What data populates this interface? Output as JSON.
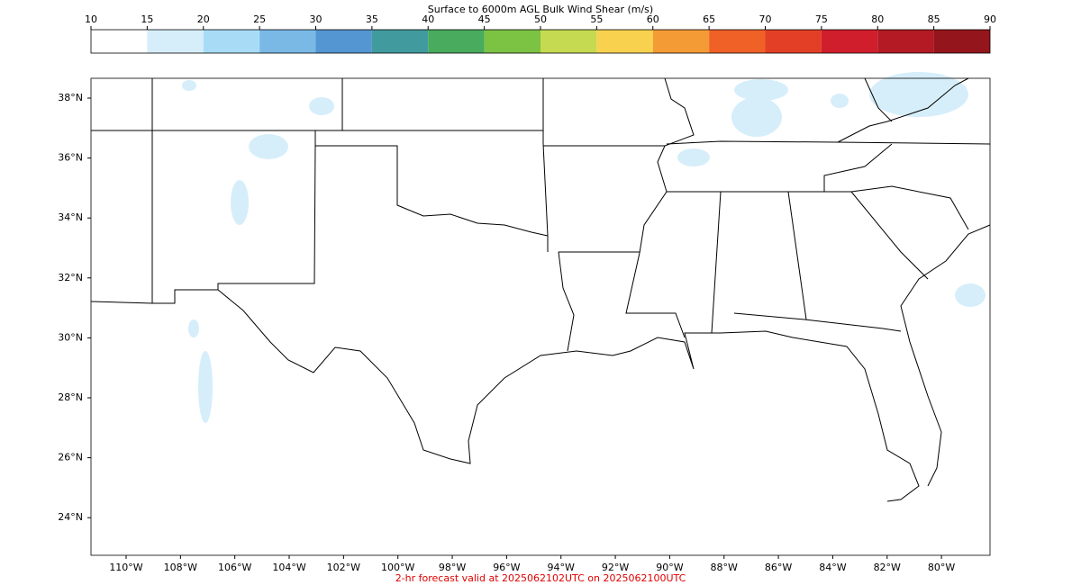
{
  "colorbar": {
    "title": "Surface to 6000m AGL Bulk Wind Shear (m/s)",
    "ticks": [
      10,
      15,
      20,
      25,
      30,
      35,
      40,
      45,
      50,
      55,
      60,
      65,
      70,
      75,
      80,
      85,
      90
    ],
    "colors": [
      "#ffffff",
      "#d6eefa",
      "#a8dcf6",
      "#7ab9e6",
      "#5396d2",
      "#419b9e",
      "#48ab5d",
      "#7cc243",
      "#c5da51",
      "#f8d24f",
      "#f59b36",
      "#f06128",
      "#e33f27",
      "#d11e2c",
      "#b31a23",
      "#94161c"
    ]
  },
  "map": {
    "lat_labels": [
      {
        "value": 38,
        "label": "38°N"
      },
      {
        "value": 36,
        "label": "36°N"
      },
      {
        "value": 34,
        "label": "34°N"
      },
      {
        "value": 32,
        "label": "32°N"
      },
      {
        "value": 30,
        "label": "30°N"
      },
      {
        "value": 28,
        "label": "28°N"
      },
      {
        "value": 26,
        "label": "26°N"
      },
      {
        "value": 24,
        "label": "24°N"
      }
    ],
    "lon_labels": [
      {
        "value": -110,
        "label": "110°W"
      },
      {
        "value": -108,
        "label": "108°W"
      },
      {
        "value": -106,
        "label": "106°W"
      },
      {
        "value": -104,
        "label": "104°W"
      },
      {
        "value": -102,
        "label": "102°W"
      },
      {
        "value": -100,
        "label": "100°W"
      },
      {
        "value": -98,
        "label": "98°W"
      },
      {
        "value": -96,
        "label": "96°W"
      },
      {
        "value": -94,
        "label": "94°W"
      },
      {
        "value": -92,
        "label": "92°W"
      },
      {
        "value": -90,
        "label": "90°W"
      },
      {
        "value": -88,
        "label": "88°W"
      },
      {
        "value": -86,
        "label": "86°W"
      },
      {
        "value": -84,
        "label": "84°W"
      },
      {
        "value": -82,
        "label": "82°W"
      },
      {
        "value": -80,
        "label": "80°W"
      }
    ]
  },
  "footer": "2-hr forecast valid at 2025062102UTC on 2025062100UTC"
}
